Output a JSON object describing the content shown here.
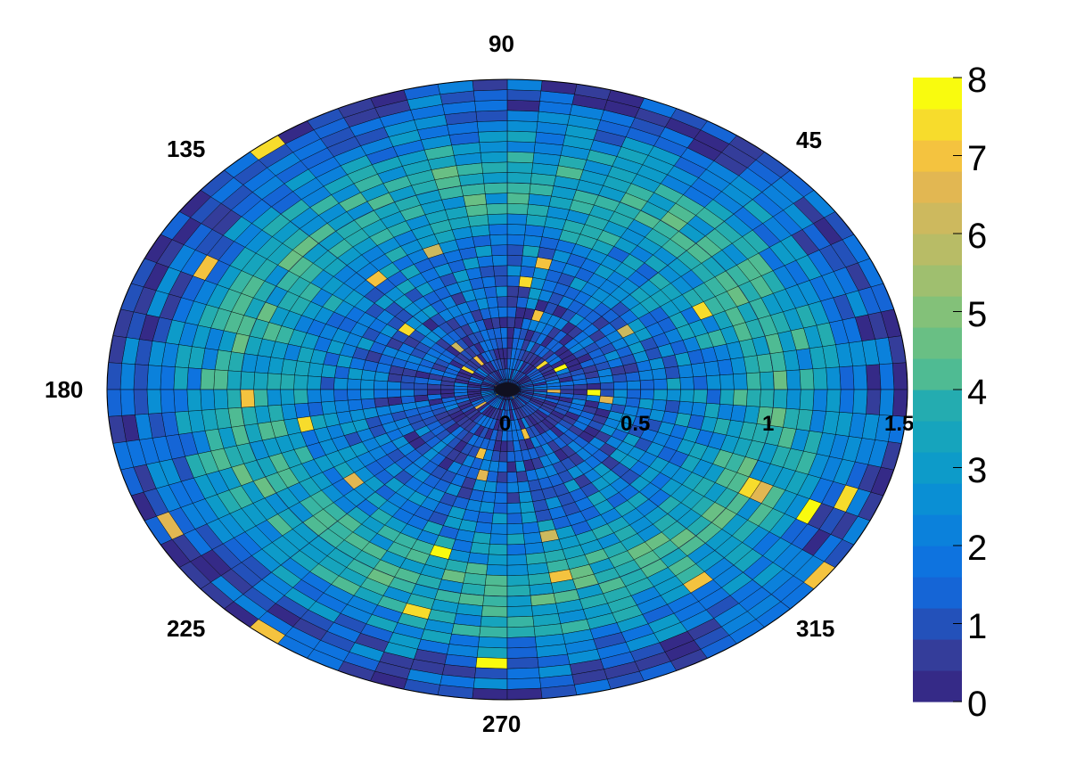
{
  "chart_data": {
    "type": "heatmap",
    "projection": "polar",
    "title": "",
    "theta_unit": "degrees",
    "theta_range": [
      0,
      360
    ],
    "theta_bins": 72,
    "r_range": [
      0,
      1.5
    ],
    "r_bins": 30,
    "z_range": [
      0,
      8
    ],
    "z_levels": 20,
    "angle_labels": [
      "0",
      "45",
      "90",
      "135",
      "180",
      "225",
      "270",
      "315"
    ],
    "radial_labels": [
      "0",
      "0.5",
      "1",
      "1.5"
    ],
    "z_ticks": [
      "0",
      "1",
      "2",
      "3",
      "4",
      "5",
      "6",
      "7",
      "8"
    ],
    "palette": [
      "#352a87",
      "#343d9a",
      "#2351ba",
      "#1565d6",
      "#0e73df",
      "#0b81db",
      "#0a8fd4",
      "#0d9bc9",
      "#16a4bd",
      "#24acb0",
      "#38b5a3",
      "#4fbb93",
      "#69bf84",
      "#83c179",
      "#9fbf6f",
      "#b8bc66",
      "#cdb95e",
      "#e2b752",
      "#f4c33f",
      "#f7dc2c",
      "#f9fb0e"
    ],
    "cell_grid_color": "#000000",
    "intensity_profile": "counts peak near r ≈ 1.0, lower toward the center and the rim; sparse outliers reach 7–8",
    "colorbar": "right"
  }
}
